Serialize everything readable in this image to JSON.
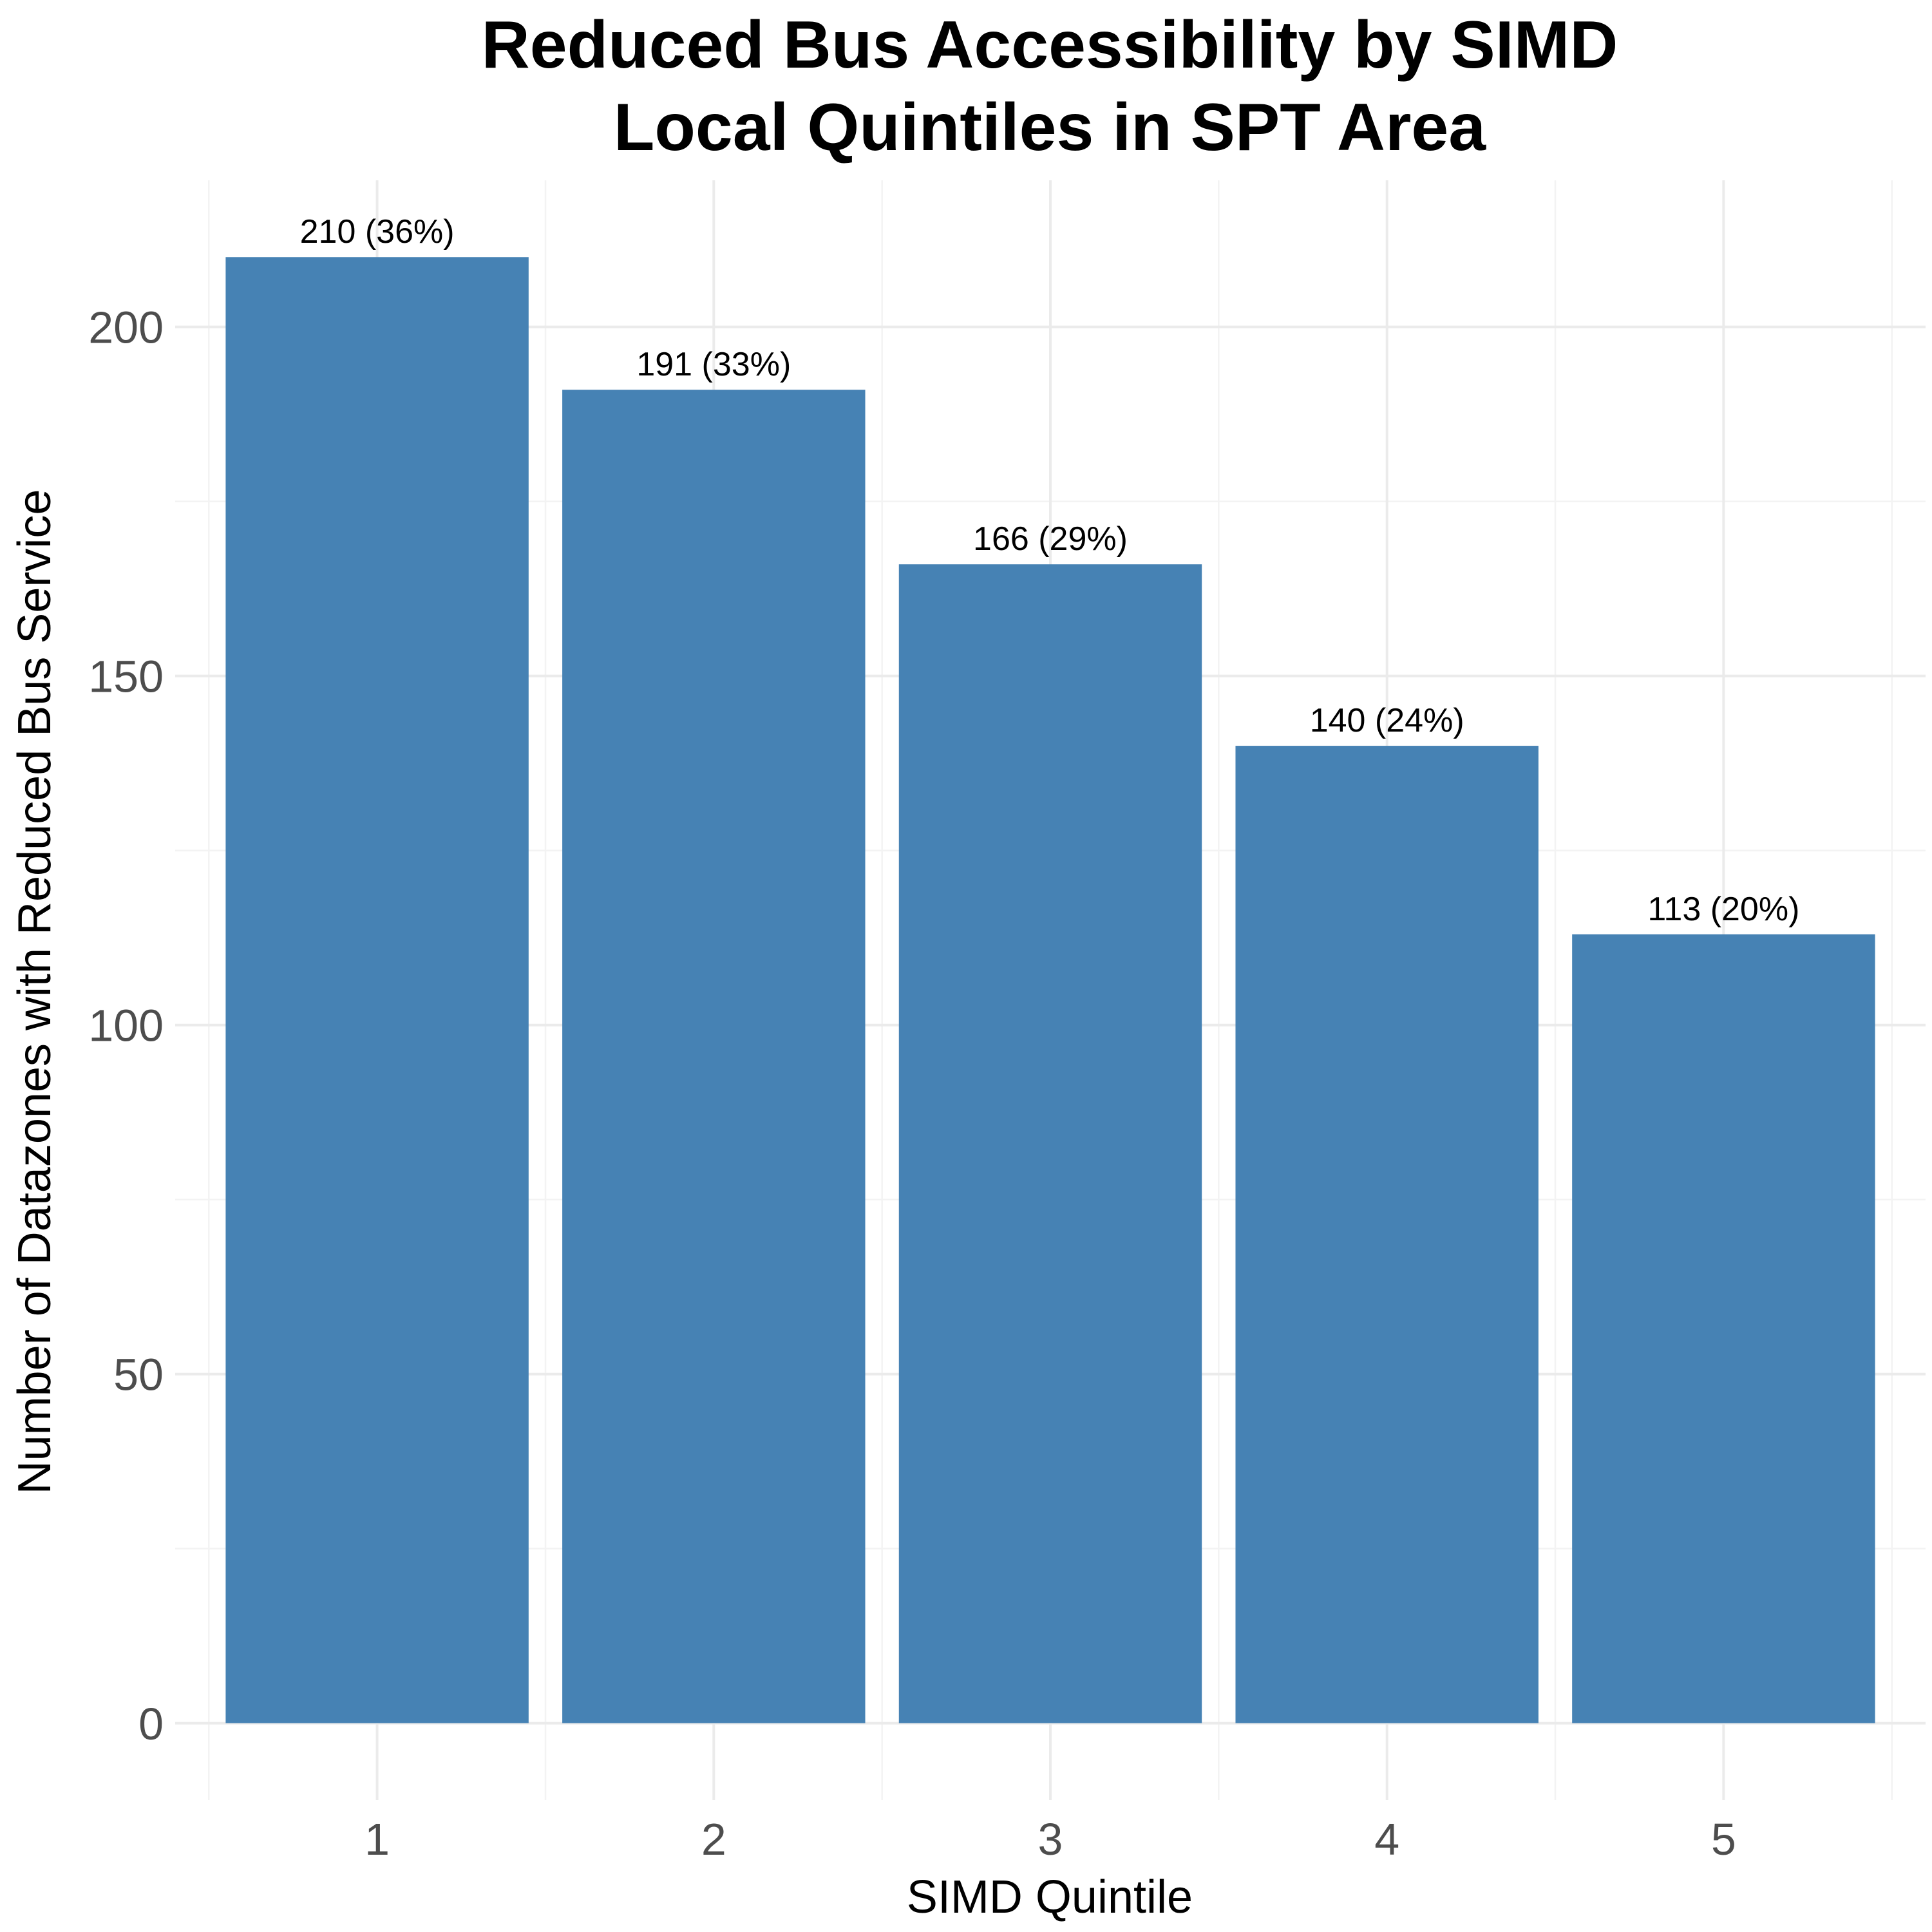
{
  "chart_data": {
    "type": "bar",
    "title": "Reduced Bus Accessibility by SIMD\nLocal Quintiles in SPT Area",
    "xlabel": "SIMD Quintile",
    "ylabel": "Number of Datazones with Reduced Bus Service",
    "categories": [
      "1",
      "2",
      "3",
      "4",
      "5"
    ],
    "values": [
      210,
      191,
      166,
      140,
      113
    ],
    "data_labels": [
      "210 (36%)",
      "191 (33%)",
      "166 (29%)",
      "140 (24%)",
      "113 (20%)"
    ],
    "ylim": [
      -11,
      221
    ],
    "yticks": [
      0,
      50,
      100,
      150,
      200
    ],
    "ytick_labels": [
      "0",
      "50",
      "100",
      "150",
      "200"
    ],
    "grid": true,
    "legend": "none",
    "bar_color": "#4682b4"
  }
}
